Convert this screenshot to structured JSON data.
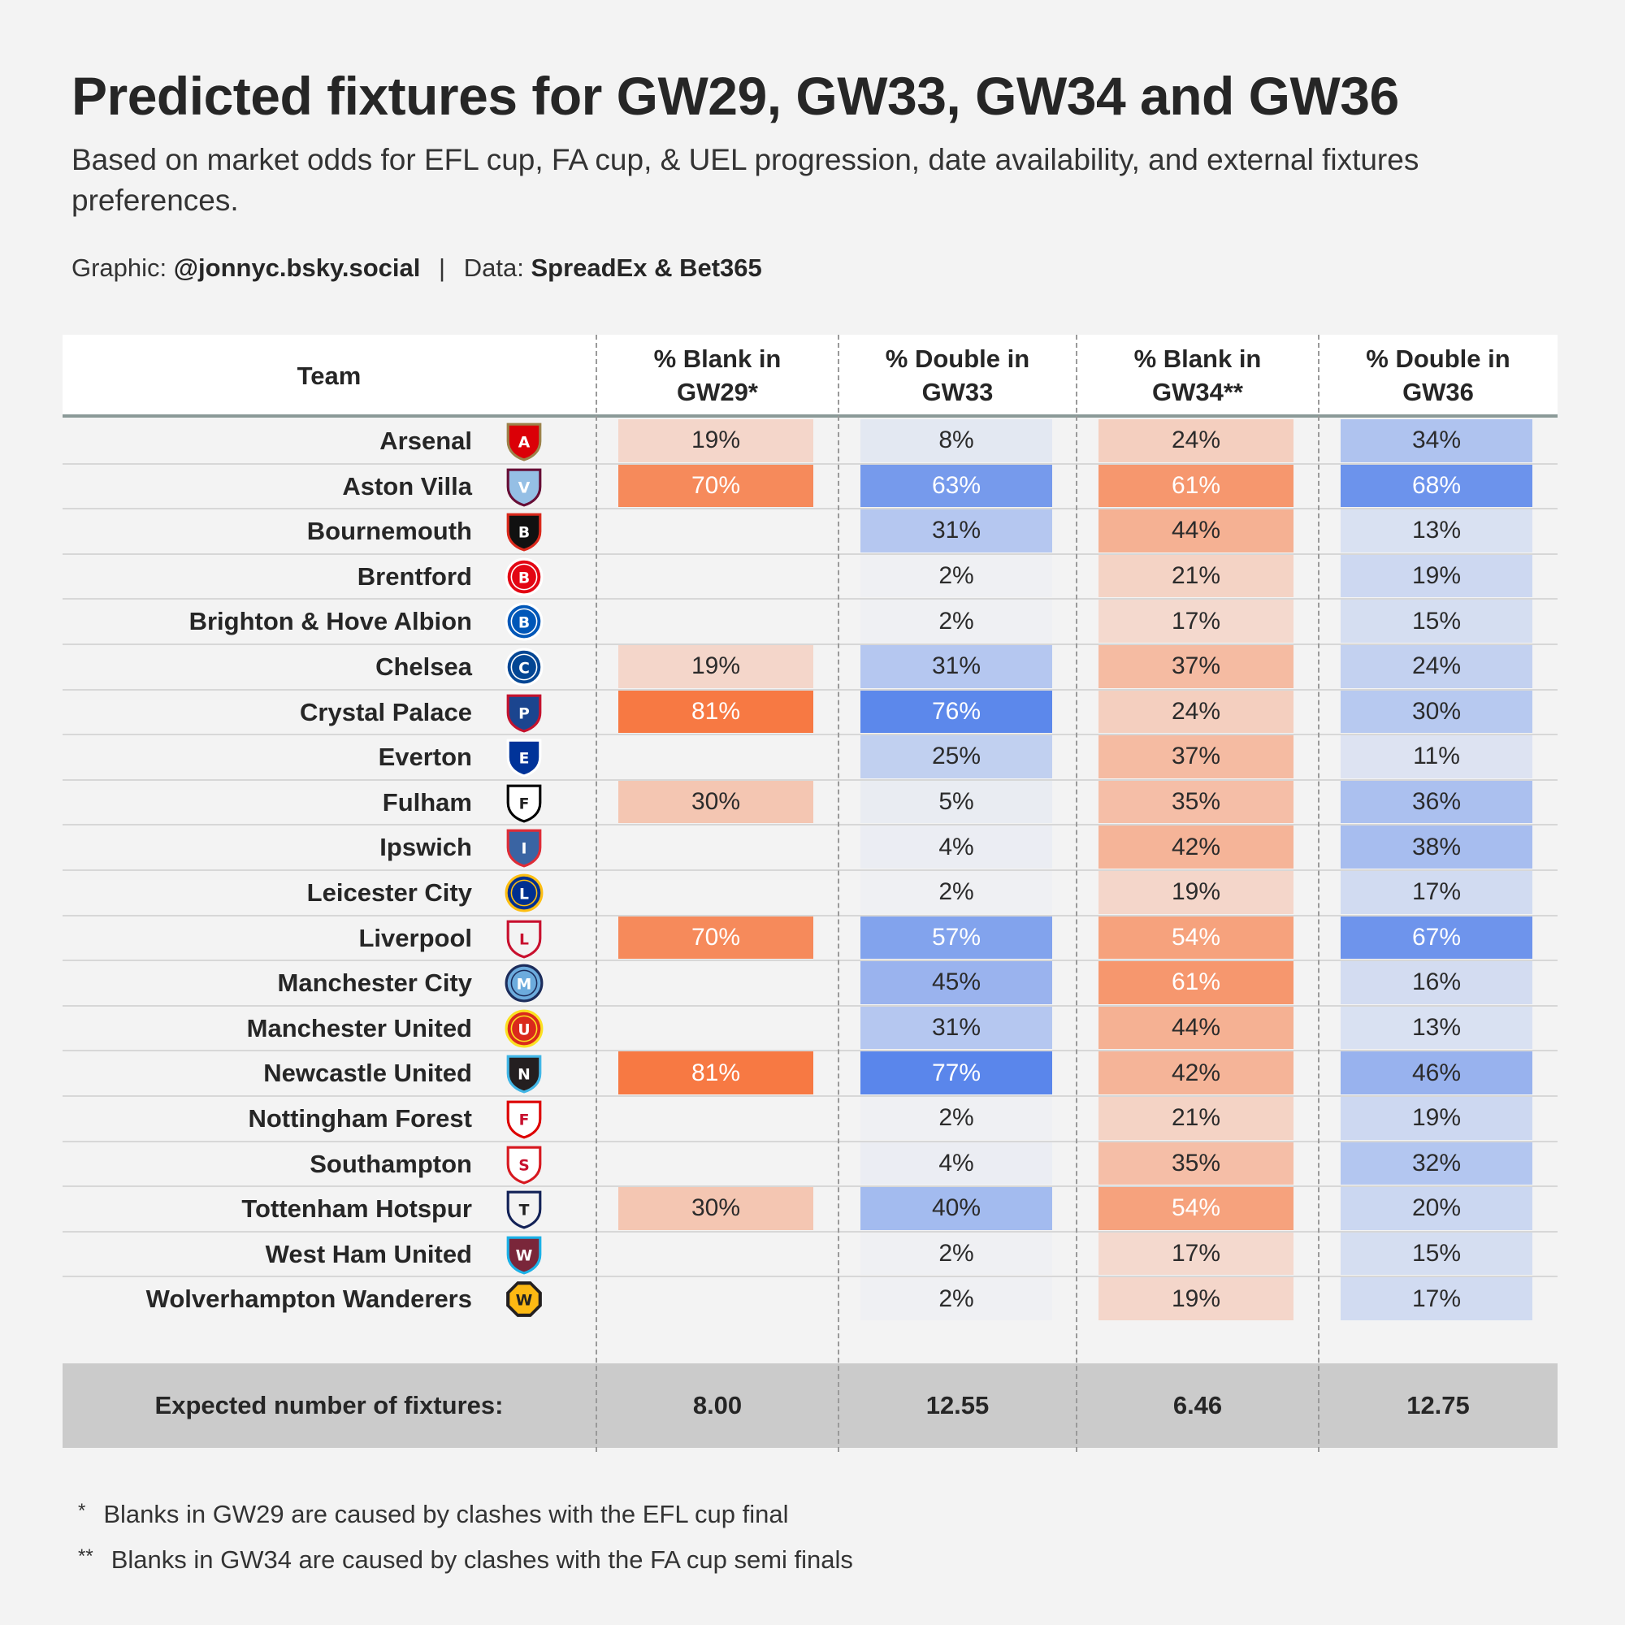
{
  "title": "Predicted fixtures for GW29, GW33, GW34 and GW36",
  "subtitle": "Based on market odds for EFL cup, FA cup, & UEL progression, date availability, and external fixtures preferences.",
  "credits": {
    "graphic_label": "Graphic:",
    "graphic_value": "@jonnyc.bsky.social",
    "separator": "|",
    "data_label": "Data:",
    "data_value": "SpreadEx & Bet365"
  },
  "colors": {
    "blank_accent": "#f7733a",
    "double_accent": "#4a7bea",
    "header_rule": "#8b9a98",
    "footer_band": "#cbcbcb"
  },
  "chart_data": {
    "type": "table",
    "columns": {
      "team": "Team",
      "blank_gw29": [
        "% Blank in",
        "GW29*"
      ],
      "double_gw33": [
        "% Double in",
        "GW33"
      ],
      "blank_gw34": [
        "% Blank in",
        "GW34**"
      ],
      "double_gw36": [
        "% Double in",
        "GW36"
      ]
    },
    "rows": [
      {
        "team": "Arsenal",
        "logo": "arsenal-crest",
        "blank_gw29": 19,
        "double_gw33": 8,
        "blank_gw34": 24,
        "double_gw36": 34
      },
      {
        "team": "Aston Villa",
        "logo": "aston-villa-crest",
        "blank_gw29": 70,
        "double_gw33": 63,
        "blank_gw34": 61,
        "double_gw36": 68
      },
      {
        "team": "Bournemouth",
        "logo": "bournemouth-crest",
        "blank_gw29": null,
        "double_gw33": 31,
        "blank_gw34": 44,
        "double_gw36": 13
      },
      {
        "team": "Brentford",
        "logo": "brentford-crest",
        "blank_gw29": null,
        "double_gw33": 2,
        "blank_gw34": 21,
        "double_gw36": 19
      },
      {
        "team": "Brighton & Hove Albion",
        "logo": "brighton-crest",
        "blank_gw29": null,
        "double_gw33": 2,
        "blank_gw34": 17,
        "double_gw36": 15
      },
      {
        "team": "Chelsea",
        "logo": "chelsea-crest",
        "blank_gw29": 19,
        "double_gw33": 31,
        "blank_gw34": 37,
        "double_gw36": 24
      },
      {
        "team": "Crystal Palace",
        "logo": "crystal-palace-crest",
        "blank_gw29": 81,
        "double_gw33": 76,
        "blank_gw34": 24,
        "double_gw36": 30
      },
      {
        "team": "Everton",
        "logo": "everton-crest",
        "blank_gw29": null,
        "double_gw33": 25,
        "blank_gw34": 37,
        "double_gw36": 11
      },
      {
        "team": "Fulham",
        "logo": "fulham-crest",
        "blank_gw29": 30,
        "double_gw33": 5,
        "blank_gw34": 35,
        "double_gw36": 36
      },
      {
        "team": "Ipswich",
        "logo": "ipswich-crest",
        "blank_gw29": null,
        "double_gw33": 4,
        "blank_gw34": 42,
        "double_gw36": 38
      },
      {
        "team": "Leicester City",
        "logo": "leicester-crest",
        "blank_gw29": null,
        "double_gw33": 2,
        "blank_gw34": 19,
        "double_gw36": 17
      },
      {
        "team": "Liverpool",
        "logo": "liverpool-crest",
        "blank_gw29": 70,
        "double_gw33": 57,
        "blank_gw34": 54,
        "double_gw36": 67
      },
      {
        "team": "Manchester City",
        "logo": "manchester-city-crest",
        "blank_gw29": null,
        "double_gw33": 45,
        "blank_gw34": 61,
        "double_gw36": 16
      },
      {
        "team": "Manchester United",
        "logo": "manchester-united-crest",
        "blank_gw29": null,
        "double_gw33": 31,
        "blank_gw34": 44,
        "double_gw36": 13
      },
      {
        "team": "Newcastle United",
        "logo": "newcastle-crest",
        "blank_gw29": 81,
        "double_gw33": 77,
        "blank_gw34": 42,
        "double_gw36": 46
      },
      {
        "team": "Nottingham Forest",
        "logo": "nottingham-forest-crest",
        "blank_gw29": null,
        "double_gw33": 2,
        "blank_gw34": 21,
        "double_gw36": 19
      },
      {
        "team": "Southampton",
        "logo": "southampton-crest",
        "blank_gw29": null,
        "double_gw33": 4,
        "blank_gw34": 35,
        "double_gw36": 32
      },
      {
        "team": "Tottenham Hotspur",
        "logo": "tottenham-crest",
        "blank_gw29": 30,
        "double_gw33": 40,
        "blank_gw34": 54,
        "double_gw36": 20
      },
      {
        "team": "West Ham United",
        "logo": "west-ham-crest",
        "blank_gw29": null,
        "double_gw33": 2,
        "blank_gw34": 17,
        "double_gw36": 15
      },
      {
        "team": "Wolverhampton Wanderers",
        "logo": "wolves-crest",
        "blank_gw29": null,
        "double_gw33": 2,
        "blank_gw34": 19,
        "double_gw36": 17
      }
    ],
    "footer": {
      "label": "Expected number of fixtures:",
      "blank_gw29": "8.00",
      "double_gw33": "12.55",
      "blank_gw34": "6.46",
      "double_gw36": "12.75"
    }
  },
  "footnotes": [
    {
      "mark": "*",
      "text": "Blanks in GW29 are caused by clashes with the EFL cup final"
    },
    {
      "mark": "**",
      "text": "Blanks in GW34 are caused by clashes with the FA cup semi finals"
    }
  ]
}
